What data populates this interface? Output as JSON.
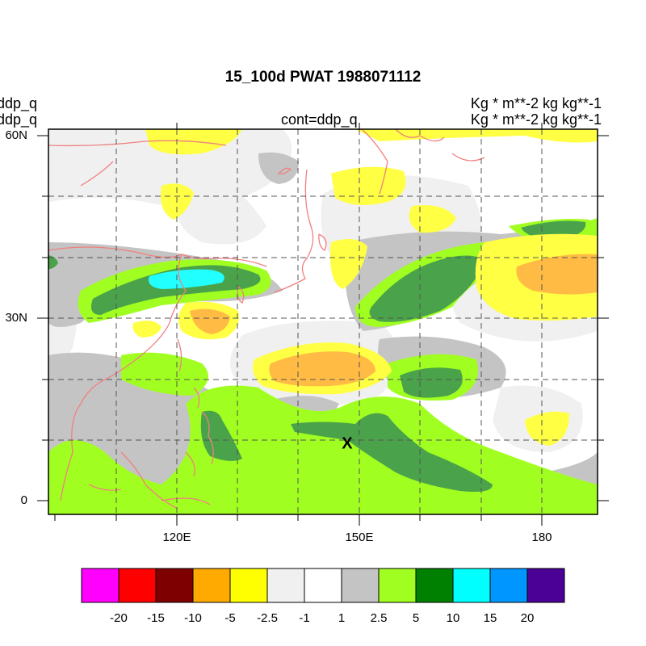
{
  "header": {
    "title": "15_100d PWAT  1988071112",
    "left_line1": "ddp_q",
    "left_line2": "ddp_q",
    "center_subtitle": "cont=ddp_q",
    "right_line1": "Kg  * m**-2 kg kg**-1",
    "right_line2": "Kg  * m**-2 kg kg**-1"
  },
  "chart_data": {
    "type": "heatmap",
    "title": "15_100d PWAT  1988071112",
    "x_axis": {
      "ticks": [
        120,
        150,
        180
      ],
      "tick_labels": [
        "120E",
        "150E",
        "180"
      ],
      "range": [
        97,
        187
      ]
    },
    "y_axis": {
      "ticks": [
        0,
        30,
        60
      ],
      "tick_labels": [
        "0",
        "30N",
        "60N"
      ],
      "range": [
        -2,
        60
      ]
    },
    "grid": true,
    "levels": [
      -20,
      -15,
      -10,
      -5,
      -2.5,
      -1,
      1,
      2.5,
      5,
      10,
      15,
      20
    ],
    "level_labels": [
      "-20",
      "-15",
      "-10",
      "-5",
      "-2.5",
      "-1",
      "1",
      "2.5",
      "5",
      "10",
      "15",
      "20"
    ],
    "colors": [
      "#ff00ff",
      "#ff0000",
      "#7f0000",
      "#ffaa00",
      "#ffff00",
      "#f0f0f0",
      "#ffffff",
      "#c4c4c4",
      "#a0ff20",
      "#008000",
      "#00ffff",
      "#0096ff",
      "#4b0096"
    ],
    "marker": {
      "label": "X",
      "lon": 148,
      "lat": 9.5
    }
  }
}
